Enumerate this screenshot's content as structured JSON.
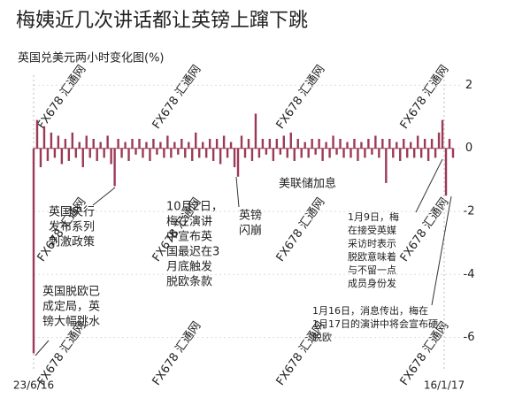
{
  "chart_data": {
    "type": "spike",
    "title": "梅姨近几次讲话都让英镑上蹿下跳",
    "subtitle": "英国兑美元两小时变化图(%)",
    "watermark": "FX678 汇通网",
    "x_labels": [
      "23/6/16",
      "16/1/17"
    ],
    "color": "#9b3a57",
    "ylim": [
      -6.6,
      2.6
    ],
    "yticks": [
      2,
      0,
      -2,
      -4,
      -6
    ],
    "grid": true,
    "values": [
      -6.5,
      0.9,
      -0.6,
      0.7,
      -0.4,
      0.5,
      -0.3,
      0.4,
      -0.5,
      0.3,
      -0.4,
      0.5,
      -0.3,
      0.2,
      -0.6,
      0.4,
      -0.3,
      0.3,
      -0.4,
      0.2,
      -0.3,
      0.4,
      -0.5,
      -1.2,
      0.3,
      -0.3,
      0.2,
      -0.4,
      0.3,
      -0.2,
      0.3,
      -0.3,
      0.2,
      -0.4,
      0.3,
      -0.2,
      0.2,
      -0.3,
      0.4,
      -0.3,
      0.2,
      -0.2,
      0.3,
      -0.3,
      0.2,
      -0.4,
      0.5,
      -0.3,
      0.2,
      -0.3,
      0.3,
      -0.4,
      0.3,
      -0.5,
      0.4,
      -0.3,
      0.2,
      -0.6,
      -0.9,
      0.4,
      -0.3,
      0.3,
      -0.4,
      1.1,
      -0.3,
      0.3,
      -0.2,
      0.3,
      -0.4,
      0.3,
      -0.2,
      0.4,
      -0.3,
      0.5,
      -0.4,
      0.3,
      -0.3,
      0.2,
      -0.3,
      0.3,
      -0.2,
      0.3,
      -0.4,
      0.2,
      -0.3,
      0.4,
      -0.2,
      0.3,
      -0.3,
      0.2,
      -0.3,
      0.3,
      -0.4,
      0.2,
      -0.3,
      0.3,
      -0.2,
      0.4,
      -0.3,
      0.3,
      -1.1,
      0.3,
      -0.3,
      0.2,
      -0.4,
      0.3,
      -0.3,
      0.2,
      -0.3,
      0.4,
      -0.3,
      0.3,
      -0.4,
      0.3,
      -0.3,
      0.5,
      0.9,
      -1.5,
      0.3,
      -0.3
    ],
    "annotations": [
      {
        "lines": [
          "英国央行",
          "发布系列",
          "刺激政策"
        ]
      },
      {
        "lines": [
          "10月2日，",
          "梅在演讲",
          "中宣布英",
          "国最迟在3",
          "月底触发",
          "脱欧条款"
        ]
      },
      {
        "lines": [
          "英镑",
          "闪崩"
        ]
      },
      {
        "lines": [
          "美联储加息"
        ]
      },
      {
        "lines": [
          "1月9日，梅",
          "在接受英媒",
          "采访时表示",
          "脱欧意味着",
          "与不留一点",
          "成员身份发"
        ]
      },
      {
        "lines": [
          "英国脱欧已",
          "成定局，英",
          "镑大幅跳水"
        ]
      },
      {
        "lines": [
          "1月16日，消息传出，梅在",
          "1月17日的演讲中将会宣布硬",
          "脱欧"
        ]
      }
    ]
  }
}
